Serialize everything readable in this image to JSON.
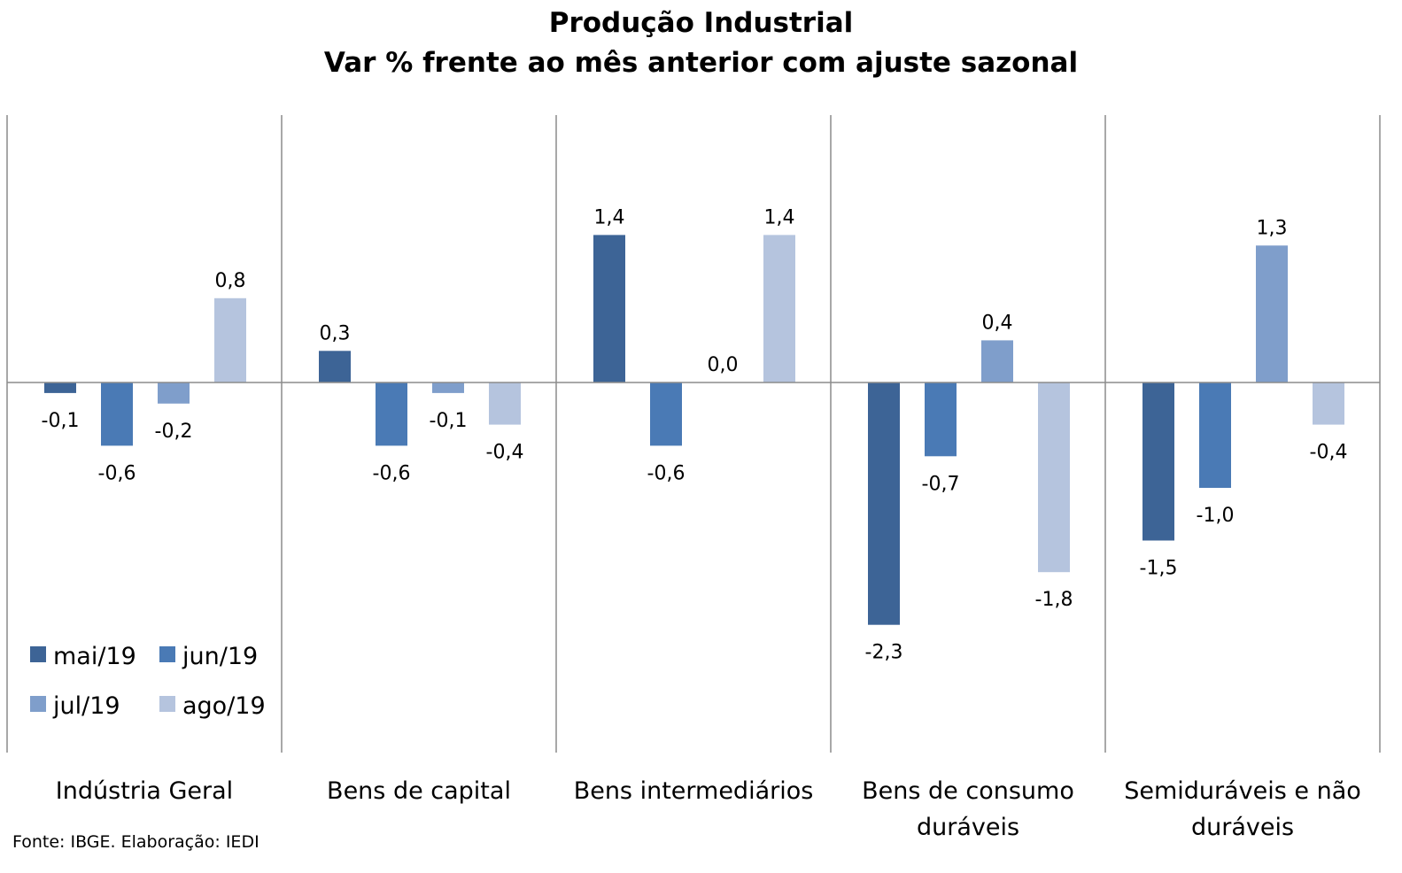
{
  "chart_data": {
    "type": "bar",
    "title": "Produção Industrial",
    "subtitle": "Var % frente ao mês anterior com ajuste sazonal",
    "categories": [
      [
        "Indústria Geral"
      ],
      [
        "Bens de capital"
      ],
      [
        "Bens intermediários"
      ],
      [
        "Bens de consumo",
        "duráveis"
      ],
      [
        "Semiduráveis e não",
        "duráveis"
      ]
    ],
    "series": [
      {
        "name": "mai/19",
        "color": "#3d6496",
        "values": [
          -0.1,
          0.3,
          1.4,
          -2.3,
          -1.5
        ],
        "labels": [
          "-0,1",
          "0,3",
          "1,4",
          "-2,3",
          "-1,5"
        ]
      },
      {
        "name": "jun/19",
        "color": "#4a7ab5",
        "values": [
          -0.6,
          -0.6,
          -0.6,
          -0.7,
          -1.0
        ],
        "labels": [
          "-0,6",
          "-0,6",
          "-0,6",
          "-0,7",
          "-1,0"
        ]
      },
      {
        "name": "jul/19",
        "color": "#7f9ecb",
        "values": [
          -0.2,
          -0.1,
          0.0,
          0.4,
          1.3
        ],
        "labels": [
          "-0,2",
          "-0,1",
          "0,0",
          "0,4",
          "1,3"
        ]
      },
      {
        "name": "ago/19",
        "color": "#b5c4de",
        "values": [
          0.8,
          -0.4,
          1.4,
          -1.8,
          -0.4
        ],
        "labels": [
          "0,8",
          "-0,4",
          "1,4",
          "-1,8",
          "-0,4"
        ]
      }
    ],
    "ylim": [
      -3.5,
      2.5
    ],
    "legend_position": "bottom-left",
    "source": "Fonte: IBGE. Elaboração: IEDI"
  }
}
